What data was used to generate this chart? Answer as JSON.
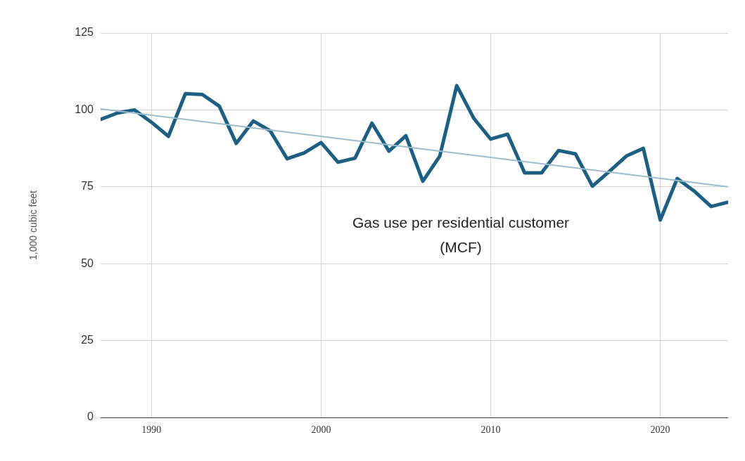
{
  "chart_data": {
    "type": "line",
    "ylabel": "1,000 cubic feet",
    "xlim": [
      1987,
      2024
    ],
    "xticks": [
      1990,
      2000,
      2010,
      2020
    ],
    "ylim": [
      0,
      125
    ],
    "yticks": [
      0,
      25,
      50,
      75,
      100,
      125
    ],
    "grid": true,
    "legend": false,
    "marker": "none",
    "line_style": "solid",
    "series": [
      {
        "name": "Gas use per residential customer (MCF)",
        "color": "#1c5f82",
        "x": [
          1987,
          1988,
          1989,
          1990,
          1991,
          1992,
          1993,
          1994,
          1995,
          1996,
          1997,
          1998,
          1999,
          2000,
          2001,
          2002,
          2003,
          2004,
          2005,
          2006,
          2007,
          2008,
          2009,
          2010,
          2011,
          2012,
          2013,
          2014,
          2015,
          2016,
          2017,
          2018,
          2019,
          2020,
          2021,
          2022,
          2023,
          2024
        ],
        "values": [
          96.9,
          99,
          100,
          96,
          91.4,
          105.3,
          105,
          101.2,
          89.1,
          96.4,
          93.2,
          84.1,
          86,
          89.4,
          83,
          84.3,
          95.7,
          86.6,
          91.6,
          76.8,
          85,
          107.9,
          97.3,
          90.5,
          92.1,
          79.5,
          79.5,
          86.8,
          85.7,
          75.2,
          80,
          85,
          87.5,
          64.2,
          77.7,
          73.6,
          68.6,
          70
        ]
      },
      {
        "type": "line",
        "color": "#9dbccc",
        "x": [
          1987,
          2024
        ],
        "values": [
          100.3,
          75
        ]
      }
    ]
  }
}
